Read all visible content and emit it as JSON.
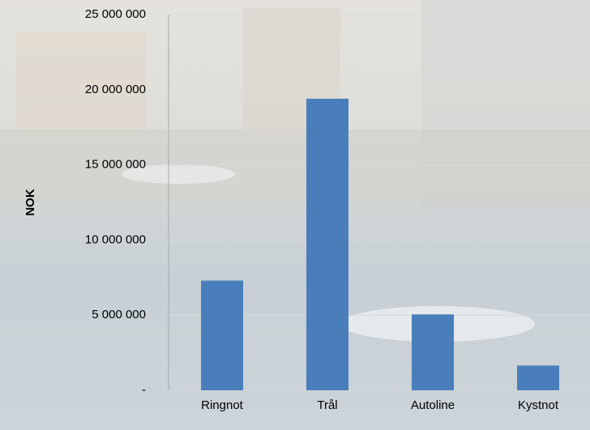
{
  "chart_data": {
    "type": "bar",
    "y_label": "NOK",
    "categories": [
      "Ringnot",
      "Trål",
      "Autoline",
      "Kystnot"
    ],
    "values": [
      7300000,
      19400000,
      5050000,
      1650000
    ],
    "color": "#4a7ebb",
    "ylim": [
      0,
      25000000
    ],
    "yticks": [
      {
        "value": 0,
        "label": "-"
      },
      {
        "value": 5000000,
        "label": "5 000 000"
      },
      {
        "value": 10000000,
        "label": "10 000 000"
      },
      {
        "value": 15000000,
        "label": "15 000 000"
      },
      {
        "value": 20000000,
        "label": "20 000 000"
      },
      {
        "value": 25000000,
        "label": "25 000 000"
      }
    ],
    "grid": true
  }
}
